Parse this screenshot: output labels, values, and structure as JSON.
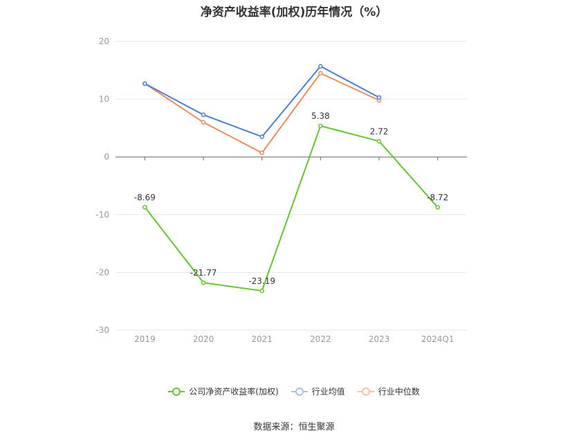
{
  "chart_data": {
    "type": "line",
    "title": "净资产收益率(加权)历年情况（%）",
    "categories": [
      "2019",
      "2020",
      "2021",
      "2022",
      "2023",
      "2024Q1"
    ],
    "ylim": [
      -30,
      20
    ],
    "yticks": [
      20,
      10,
      0,
      -10,
      -20,
      -30
    ],
    "grid": true,
    "legend_position": "bottom",
    "series": [
      {
        "name": "公司净资产收益率(加权)",
        "color": "#5ec72a",
        "values": [
          -8.69,
          -21.77,
          -23.19,
          5.38,
          2.72,
          -8.72
        ],
        "labels": [
          "-8.69",
          "-21.77",
          "-23.19",
          "5.38",
          "2.72",
          "-8.72"
        ]
      },
      {
        "name": "行业均值",
        "color": "#4a7fd6",
        "values": [
          12.7,
          7.3,
          3.5,
          15.7,
          10.3,
          null
        ]
      },
      {
        "name": "行业中位数",
        "color": "#f08a5d",
        "values": [
          12.7,
          6.0,
          0.7,
          14.5,
          9.8,
          null
        ]
      }
    ]
  },
  "source": "数据来源：恒生聚源"
}
